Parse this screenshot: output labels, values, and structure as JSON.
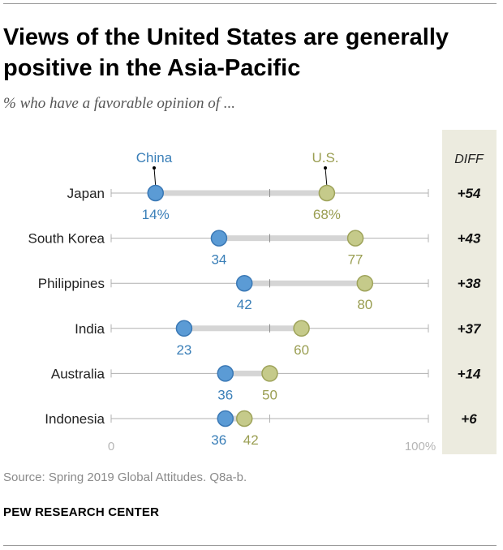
{
  "title": "Views of the United States are generally positive in the Asia-Pacific",
  "subtitle": "% who have a favorable opinion of ...",
  "source": "Source: Spring 2019 Global Attitudes. Q8a-b.",
  "organization": "PEW RESEARCH CENTER",
  "colors": {
    "china": "#5b9bd5",
    "china_stroke": "#3a78b5",
    "china_label": "#3a7fb8",
    "us": "#c5ca8a",
    "us_stroke": "#9ea35a",
    "us_label": "#9a9e52",
    "connector": "#d5d5d5",
    "diff_bg": "#ecebdf"
  },
  "chart_data": {
    "type": "dot",
    "categories": [
      "Japan",
      "South Korea",
      "Philippines",
      "India",
      "Australia",
      "Indonesia"
    ],
    "series": [
      {
        "name": "China",
        "values": [
          14,
          34,
          42,
          23,
          36,
          36
        ]
      },
      {
        "name": "U.S.",
        "values": [
          68,
          77,
          80,
          60,
          50,
          42
        ]
      }
    ],
    "value_labels": {
      "China": [
        "14%",
        "34",
        "42",
        "23",
        "36",
        "36"
      ],
      "U.S.": [
        "68%",
        "77",
        "80",
        "60",
        "50",
        "42"
      ]
    },
    "diff_header": "DIFF",
    "diff": [
      "+54",
      "+43",
      "+38",
      "+37",
      "+14",
      "+6"
    ],
    "xlim": [
      0,
      100
    ],
    "x_tick_labels": [
      "0",
      "100%"
    ],
    "grid": false,
    "legend": "inline-top"
  }
}
